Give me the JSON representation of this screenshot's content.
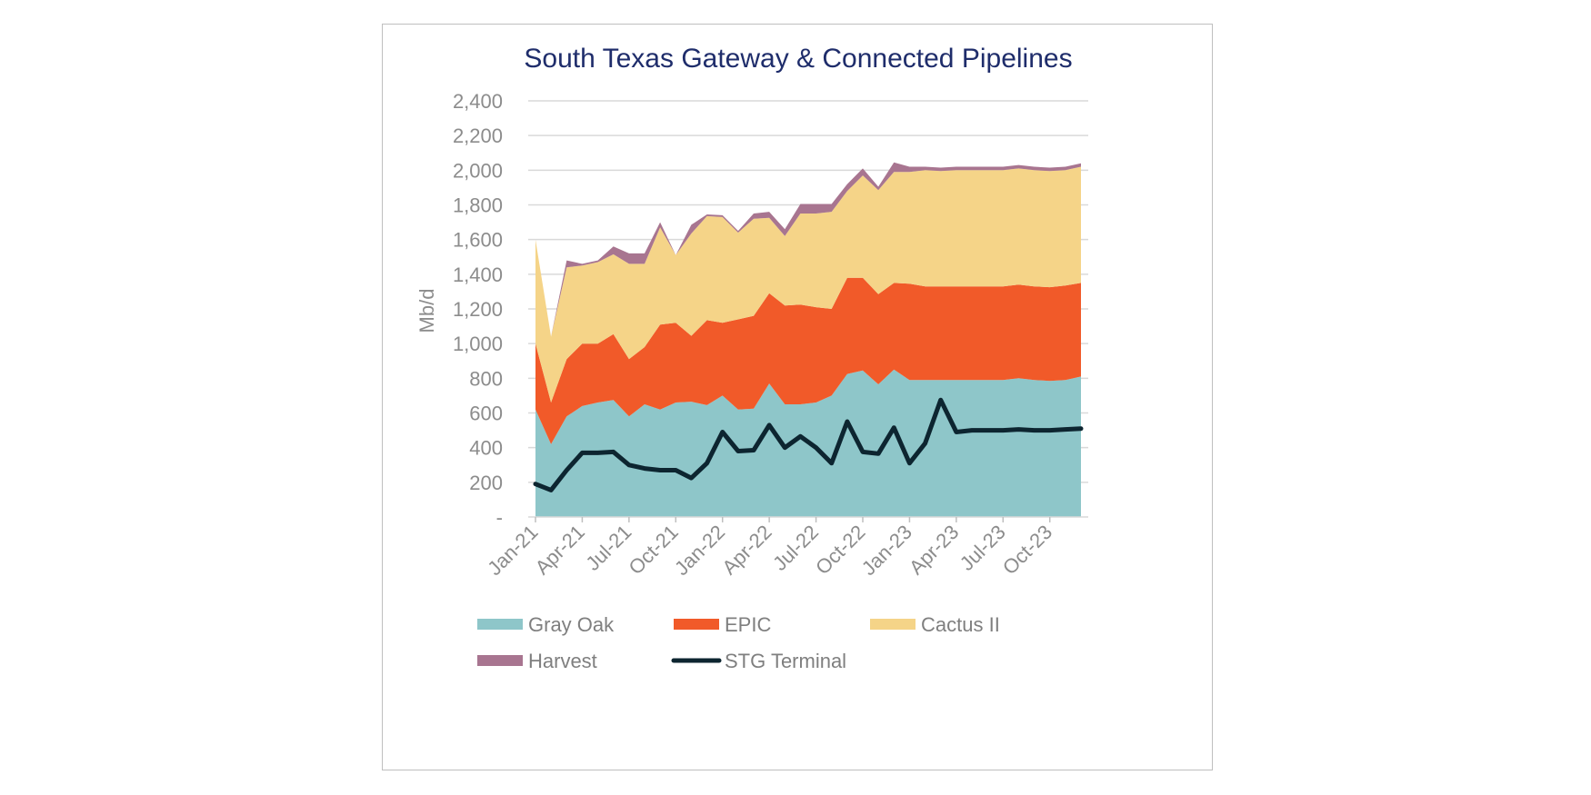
{
  "chart_data": {
    "type": "area",
    "stacked": true,
    "title": "South Texas Gateway & Connected Pipelines",
    "ylabel": "Mb/d",
    "ylim": [
      0,
      2400
    ],
    "yticks": [
      0,
      200,
      400,
      600,
      800,
      1000,
      1200,
      1400,
      1600,
      1800,
      2000,
      2200,
      2400
    ],
    "ytick_labels": [
      "-",
      "200",
      "400",
      "600",
      "800",
      "1,000",
      "1,200",
      "1,400",
      "1,600",
      "1,800",
      "2,000",
      "2,200",
      "2,400"
    ],
    "x": [
      "Jan-21",
      "Feb-21",
      "Mar-21",
      "Apr-21",
      "May-21",
      "Jun-21",
      "Jul-21",
      "Aug-21",
      "Sep-21",
      "Oct-21",
      "Nov-21",
      "Dec-21",
      "Jan-22",
      "Feb-22",
      "Mar-22",
      "Apr-22",
      "May-22",
      "Jun-22",
      "Jul-22",
      "Aug-22",
      "Sep-22",
      "Oct-22",
      "Nov-22",
      "Dec-22",
      "Jan-23",
      "Feb-23",
      "Mar-23",
      "Apr-23",
      "May-23",
      "Jun-23",
      "Jul-23",
      "Aug-23",
      "Sep-23",
      "Oct-23",
      "Nov-23",
      "Dec-23"
    ],
    "xtick_labels": [
      "Jan-21",
      "Apr-21",
      "Jul-21",
      "Oct-21",
      "Jan-22",
      "Apr-22",
      "Jul-22",
      "Oct-22",
      "Jan-23",
      "Apr-23",
      "Jul-23",
      "Oct-23"
    ],
    "grid": true,
    "legend_position": "bottom",
    "series": [
      {
        "name": "Gray Oak",
        "kind": "area",
        "color": "#8ec6c9",
        "values": [
          620,
          420,
          580,
          640,
          660,
          675,
          580,
          650,
          620,
          660,
          665,
          645,
          700,
          620,
          625,
          770,
          650,
          650,
          660,
          700,
          825,
          845,
          765,
          850,
          790,
          790,
          790,
          790,
          790,
          790,
          790,
          800,
          790,
          785,
          790,
          810
        ]
      },
      {
        "name": "EPIC",
        "kind": "area",
        "color": "#f15a29",
        "values": [
          380,
          240,
          330,
          360,
          340,
          380,
          330,
          330,
          490,
          460,
          380,
          490,
          420,
          520,
          535,
          520,
          570,
          575,
          550,
          500,
          555,
          535,
          520,
          500,
          555,
          540,
          540,
          540,
          540,
          540,
          540,
          540,
          540,
          540,
          545,
          540
        ]
      },
      {
        "name": "Cactus II",
        "kind": "area",
        "color": "#f5d488",
        "values": [
          600,
          380,
          530,
          450,
          470,
          460,
          550,
          480,
          560,
          390,
          590,
          600,
          610,
          500,
          560,
          435,
          400,
          525,
          540,
          560,
          500,
          590,
          600,
          640,
          645,
          670,
          665,
          670,
          670,
          670,
          670,
          670,
          670,
          670,
          665,
          670
        ]
      },
      {
        "name": "Harvest",
        "kind": "area",
        "color": "#a87590",
        "values": [
          0,
          0,
          40,
          10,
          10,
          45,
          60,
          60,
          30,
          0,
          50,
          10,
          10,
          10,
          30,
          35,
          40,
          55,
          55,
          45,
          40,
          40,
          20,
          55,
          30,
          20,
          20,
          20,
          20,
          20,
          20,
          20,
          20,
          20,
          20,
          20
        ]
      },
      {
        "name": "STG Terminal",
        "kind": "line",
        "color": "#0d2530",
        "values": [
          190,
          155,
          270,
          370,
          370,
          375,
          300,
          280,
          270,
          270,
          225,
          310,
          490,
          380,
          385,
          530,
          400,
          465,
          400,
          310,
          550,
          375,
          365,
          515,
          310,
          425,
          675,
          490,
          500,
          500,
          500,
          505,
          500,
          500,
          505,
          510
        ]
      }
    ]
  }
}
